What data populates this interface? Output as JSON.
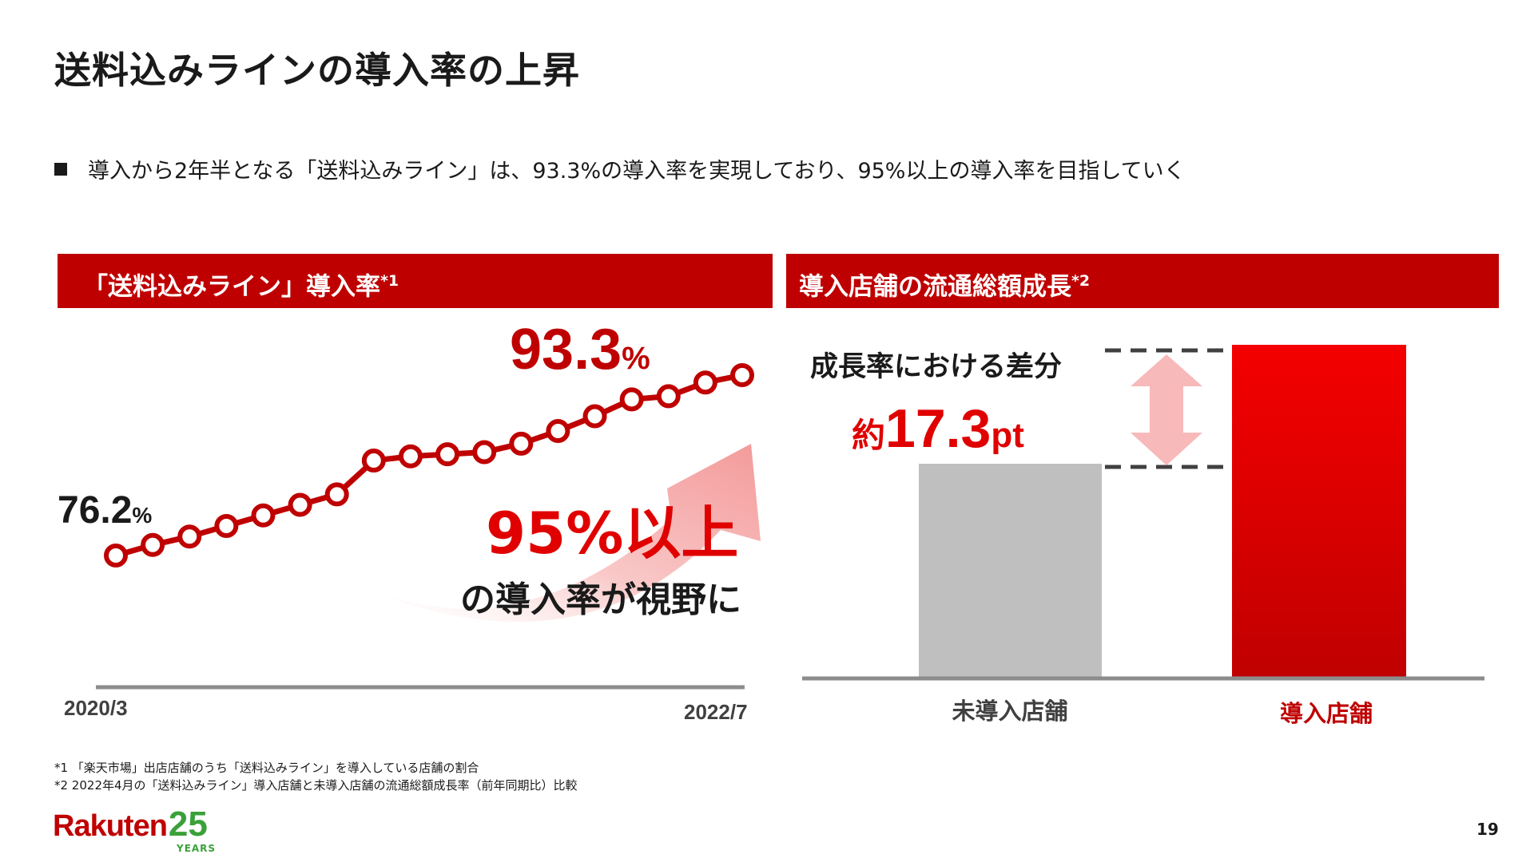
{
  "slide": {
    "title": "送料込みラインの導入率の上昇",
    "bullet": "導入から2年半となる「送料込みライン」は、93.3%の導入率を実現しており、95%以上の導入率を目指していく",
    "page_number": "19"
  },
  "left_panel": {
    "header": "「送料込みライン」導入率",
    "header_note": "*1",
    "start_value_label": "76.2",
    "end_value_label": "93.3",
    "percent_sign": "%",
    "x_start_label": "2020/3",
    "x_end_label": "2022/7",
    "target_big": "95%以上",
    "target_sub": "の導入率が視野に"
  },
  "right_panel": {
    "header": "導入店舗の流通総額成長",
    "header_note": "*2",
    "diff_label": "成長率における差分",
    "diff_prefix": "約",
    "diff_value": "17.3",
    "diff_unit": "pt"
  },
  "footnotes": [
    "*1 「楽天市場」出店店舗のうち「送料込みライン」を導入している店舗の割合",
    "*2 2022年4月の「送料込みライン」導入店舗と未導入店舗の流通総額成長率（前年同期比）比較"
  ],
  "logo": {
    "word": "Rakuten",
    "number": "25",
    "years": "YEARS"
  },
  "colors": {
    "brand_red": "#bf0000",
    "bar_red": "#e00000",
    "bar_gray": "#bfbfbf",
    "arrow_pink": "#f7b9b9",
    "logo_green": "#3aa13a"
  },
  "chart_data": [
    {
      "type": "line",
      "title": "「送料込みライン」導入率",
      "x_start": "2020/3",
      "x_end": "2022/7",
      "values": [
        76.2,
        77.2,
        78.0,
        79.0,
        80.0,
        81.0,
        82.0,
        85.2,
        85.6,
        85.8,
        86.0,
        86.8,
        88.0,
        89.4,
        91.0,
        91.3,
        92.6,
        93.3
      ],
      "point_labels": [
        {
          "index": 0,
          "text": "76.2%"
        },
        {
          "index": 17,
          "text": "93.3%"
        }
      ],
      "target": "95%以上",
      "grid": false
    },
    {
      "type": "bar",
      "title": "導入店舗の流通総額成長",
      "categories": [
        "未導入店舗",
        "導入店舗"
      ],
      "difference_pt": 17.3,
      "annotation": "成長率における差分 約17.3pt"
    }
  ]
}
